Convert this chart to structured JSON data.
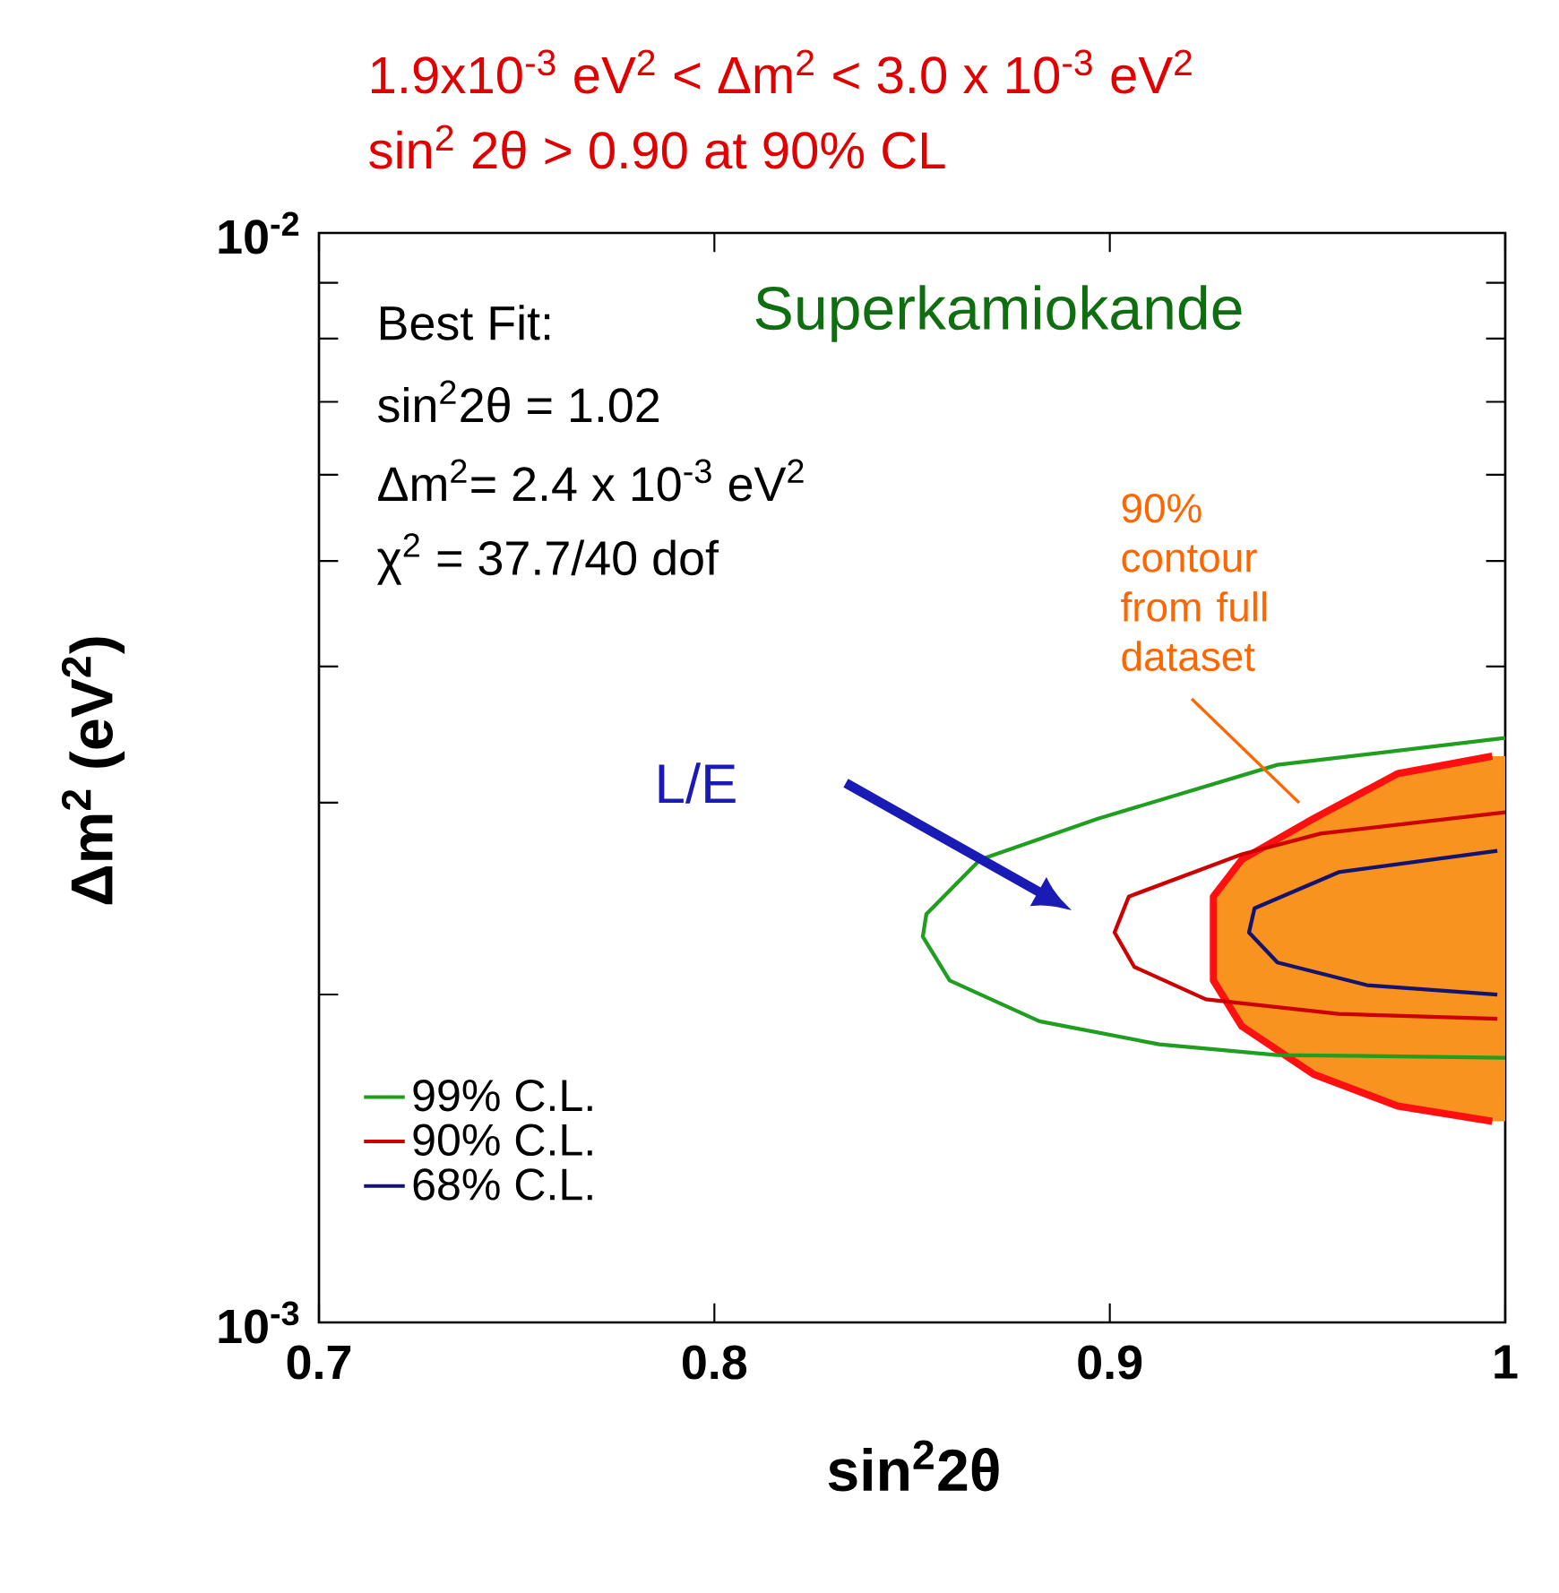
{
  "chart_data": {
    "type": "line",
    "title": "1.9x10$^{-3}$ eV$^{2}$ < Δm$^{2}$ < 3.0 x 10$^{-3}$ eV$^{2}$",
    "subtitle": "sin$^{2}$ 2θ > 0.90     at 90% CL",
    "xlabel": "sin$^{2}$2θ",
    "ylabel": "Δm$^{2}$ (eV$^{2}$)",
    "log": "y",
    "xlim": [
      0.7,
      1.0
    ],
    "ylim": [
      0.001,
      0.01
    ],
    "xticks": [
      0.7,
      0.8,
      0.9,
      1
    ],
    "yticks": [
      {
        "value": 0.001,
        "label": "10$^{-3}$"
      },
      {
        "value": 0.002,
        "label": null
      },
      {
        "value": 0.003,
        "label": null
      },
      {
        "value": 0.004,
        "label": null
      },
      {
        "value": 0.005,
        "label": null
      },
      {
        "value": 0.006,
        "label": null
      },
      {
        "value": 0.007,
        "label": null
      },
      {
        "value": 0.008,
        "label": null
      },
      {
        "value": 0.009,
        "label": null
      },
      {
        "value": 0.01,
        "label": "10$^{-2}$"
      }
    ],
    "legend": "bottom left",
    "series": [
      {
        "type": "area",
        "color": "#f7931e",
        "x": [
          1.0,
          0.9967,
          0.9728,
          0.9515,
          0.9334,
          0.9262,
          0.9262,
          0.9334,
          0.9515,
          0.9728,
          0.9967,
          1.0
        ],
        "values": [
          0.00331,
          0.00331,
          0.00319,
          0.0029,
          0.00266,
          0.00246,
          0.00206,
          0.00187,
          0.00169,
          0.00158,
          0.00153,
          0.00153
        ]
      },
      {
        "name": "99% C.L.",
        "color": "#1f9e1f",
        "x": [
          1.0,
          0.9424,
          0.897,
          0.8672,
          0.8536,
          0.8527,
          0.8595,
          0.8822,
          0.9125,
          0.9424,
          1.0
        ],
        "values": [
          0.00344,
          0.00325,
          0.0029,
          0.00266,
          0.00237,
          0.00226,
          0.00206,
          0.00189,
          0.0018,
          0.00176,
          0.00175
        ]
      },
      {
        "name": "90% C.L.",
        "color": "#cc0000",
        "x": [
          1.0,
          0.9533,
          0.9334,
          0.9048,
          0.9012,
          0.9062,
          0.9243,
          0.9579,
          0.998
        ],
        "values": [
          0.00294,
          0.00281,
          0.00269,
          0.00246,
          0.00228,
          0.00212,
          0.00198,
          0.00192,
          0.0019
        ]
      },
      {
        "name": "68% C.L.",
        "color": "#14146e",
        "x": [
          0.998,
          0.9579,
          0.9366,
          0.9352,
          0.9424,
          0.965,
          0.998
        ],
        "values": [
          0.00271,
          0.00259,
          0.0024,
          0.00228,
          0.00214,
          0.00204,
          0.002
        ]
      }
    ],
    "annotations": [
      "Superkamiokande",
      "Best Fit:",
      "sin$^{2}$2θ = 1.02",
      "Δm$^{2}$= 2.4 x 10$^{-3}$ eV$^{2}$",
      "χ$^{2}$ = 37.7/40 dof",
      "90% contour from full dataset",
      "L/E"
    ]
  }
}
